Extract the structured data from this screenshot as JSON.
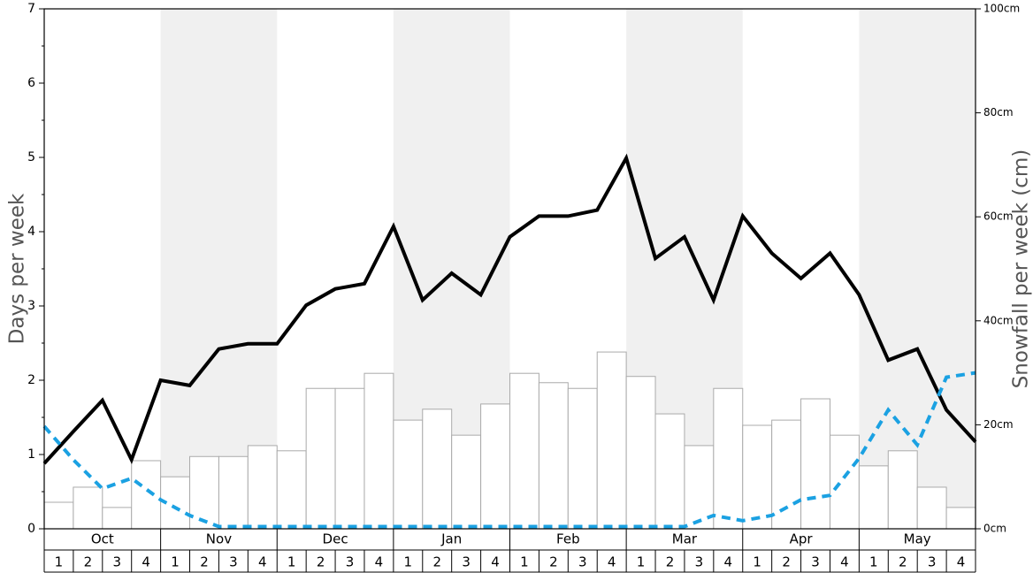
{
  "chart_data": {
    "type": "bar-line",
    "y_label": "Days per week",
    "y2_label": "Snowfall per week (cm)",
    "months": [
      "Oct",
      "Nov",
      "Dec",
      "Jan",
      "Feb",
      "Mar",
      "Apr",
      "May"
    ],
    "weeks": [
      "1",
      "2",
      "3",
      "4"
    ],
    "ylim": [
      0,
      7
    ],
    "yticks": [
      0,
      1,
      2,
      3,
      4,
      5,
      6,
      7
    ],
    "y2lim": [
      0,
      100
    ],
    "y2ticks": [
      {
        "value": 0,
        "label": "0cm"
      },
      {
        "value": 20,
        "label": "20cm"
      },
      {
        "value": 40,
        "label": "40cm"
      },
      {
        "value": 60,
        "label": "60cm"
      },
      {
        "value": 80,
        "label": "80cm"
      },
      {
        "value": 100,
        "label": "100cm"
      }
    ],
    "shade_color": "#f0f0f0",
    "series": [
      {
        "kind": "bar",
        "axis": "y2",
        "color": "#ffffff",
        "edge": "#aaaaaa",
        "values": [
          5.1,
          8.0,
          4.1,
          13.1,
          10.0,
          13.9,
          13.9,
          16.0,
          15.0,
          27.0,
          27.0,
          29.9,
          20.9,
          23.0,
          18.0,
          24.0,
          29.9,
          28.1,
          27.0,
          34.0,
          29.3,
          22.1,
          16.0,
          27.0,
          19.9,
          20.9,
          25.0,
          18.0,
          12.1,
          15.0,
          8.0,
          4.1
        ]
      },
      {
        "kind": "line",
        "axis": "y",
        "color": "#000000",
        "dash": false,
        "values": [
          0.88,
          1.31,
          1.73,
          0.93,
          2.0,
          1.93,
          2.42,
          2.49,
          2.49,
          3.01,
          3.23,
          3.3,
          4.07,
          3.08,
          3.44,
          3.15,
          3.93,
          4.21,
          4.21,
          4.29,
          4.99,
          3.64,
          3.93,
          3.08,
          4.21,
          3.71,
          3.37,
          3.71,
          3.15,
          2.27,
          2.42,
          1.6,
          1.17
        ]
      },
      {
        "kind": "line",
        "axis": "y",
        "color": "#1ba1e2",
        "dash": true,
        "values": [
          1.38,
          0.93,
          0.54,
          0.68,
          0.39,
          0.18,
          0.03,
          0.03,
          0.03,
          0.03,
          0.03,
          0.03,
          0.03,
          0.03,
          0.03,
          0.03,
          0.03,
          0.03,
          0.03,
          0.03,
          0.03,
          0.03,
          0.03,
          0.18,
          0.11,
          0.18,
          0.39,
          0.45,
          0.95,
          1.6,
          1.13,
          2.04,
          2.1
        ]
      }
    ]
  }
}
